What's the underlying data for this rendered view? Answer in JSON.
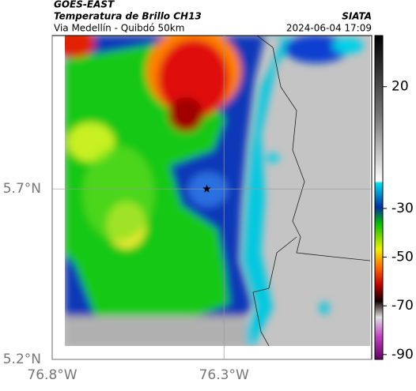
{
  "header": {
    "satellite": "GOES-EAST",
    "title": "Temperatura de Brillo CH13",
    "subtitle": "Via Medellín - Quibdó 50km",
    "source": "SIATA",
    "datetime": "2024-06-04 17:09"
  },
  "map": {
    "xlim": [
      -76.8,
      -75.87
    ],
    "ylim": [
      5.2,
      6.15
    ],
    "xticks": [
      {
        "value": -76.8,
        "label": "76.8°W"
      },
      {
        "value": -76.3,
        "label": "76.3°W"
      }
    ],
    "yticks": [
      {
        "value": 5.2,
        "label": "5.2°N"
      },
      {
        "value": 5.7,
        "label": "5.7°N"
      }
    ],
    "marker": {
      "lon": -76.35,
      "lat": 5.7
    }
  },
  "colorbar": {
    "lim": [
      -92,
      41
    ],
    "ticks": [
      20,
      -30,
      -50,
      -70,
      -90
    ]
  }
}
